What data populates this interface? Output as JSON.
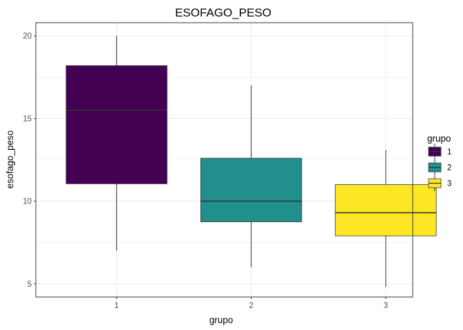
{
  "chart_data": {
    "type": "boxplot",
    "title": "ESOFAGO_PESO",
    "xlabel": "grupo",
    "ylabel": "esofago_peso",
    "categories": [
      "1",
      "2",
      "3"
    ],
    "ylim": [
      4.2,
      20.8
    ],
    "yticks": [
      5,
      10,
      15,
      20
    ],
    "grid": true,
    "legend": {
      "title": "grupo",
      "position": "right",
      "entries": [
        "1",
        "2",
        "3"
      ]
    },
    "colors": [
      "#440154",
      "#21908C",
      "#FDE725"
    ],
    "boxes": [
      {
        "group": "1",
        "whisker_low": 7.0,
        "q1": 11.05,
        "median": 15.5,
        "q3": 18.2,
        "whisker_high": 20.0
      },
      {
        "group": "2",
        "whisker_low": 6.0,
        "q1": 8.75,
        "median": 10.0,
        "q3": 12.6,
        "whisker_high": 17.0
      },
      {
        "group": "3",
        "whisker_low": 4.8,
        "q1": 7.9,
        "median": 9.3,
        "q3": 11.0,
        "whisker_high": 13.1
      }
    ]
  }
}
